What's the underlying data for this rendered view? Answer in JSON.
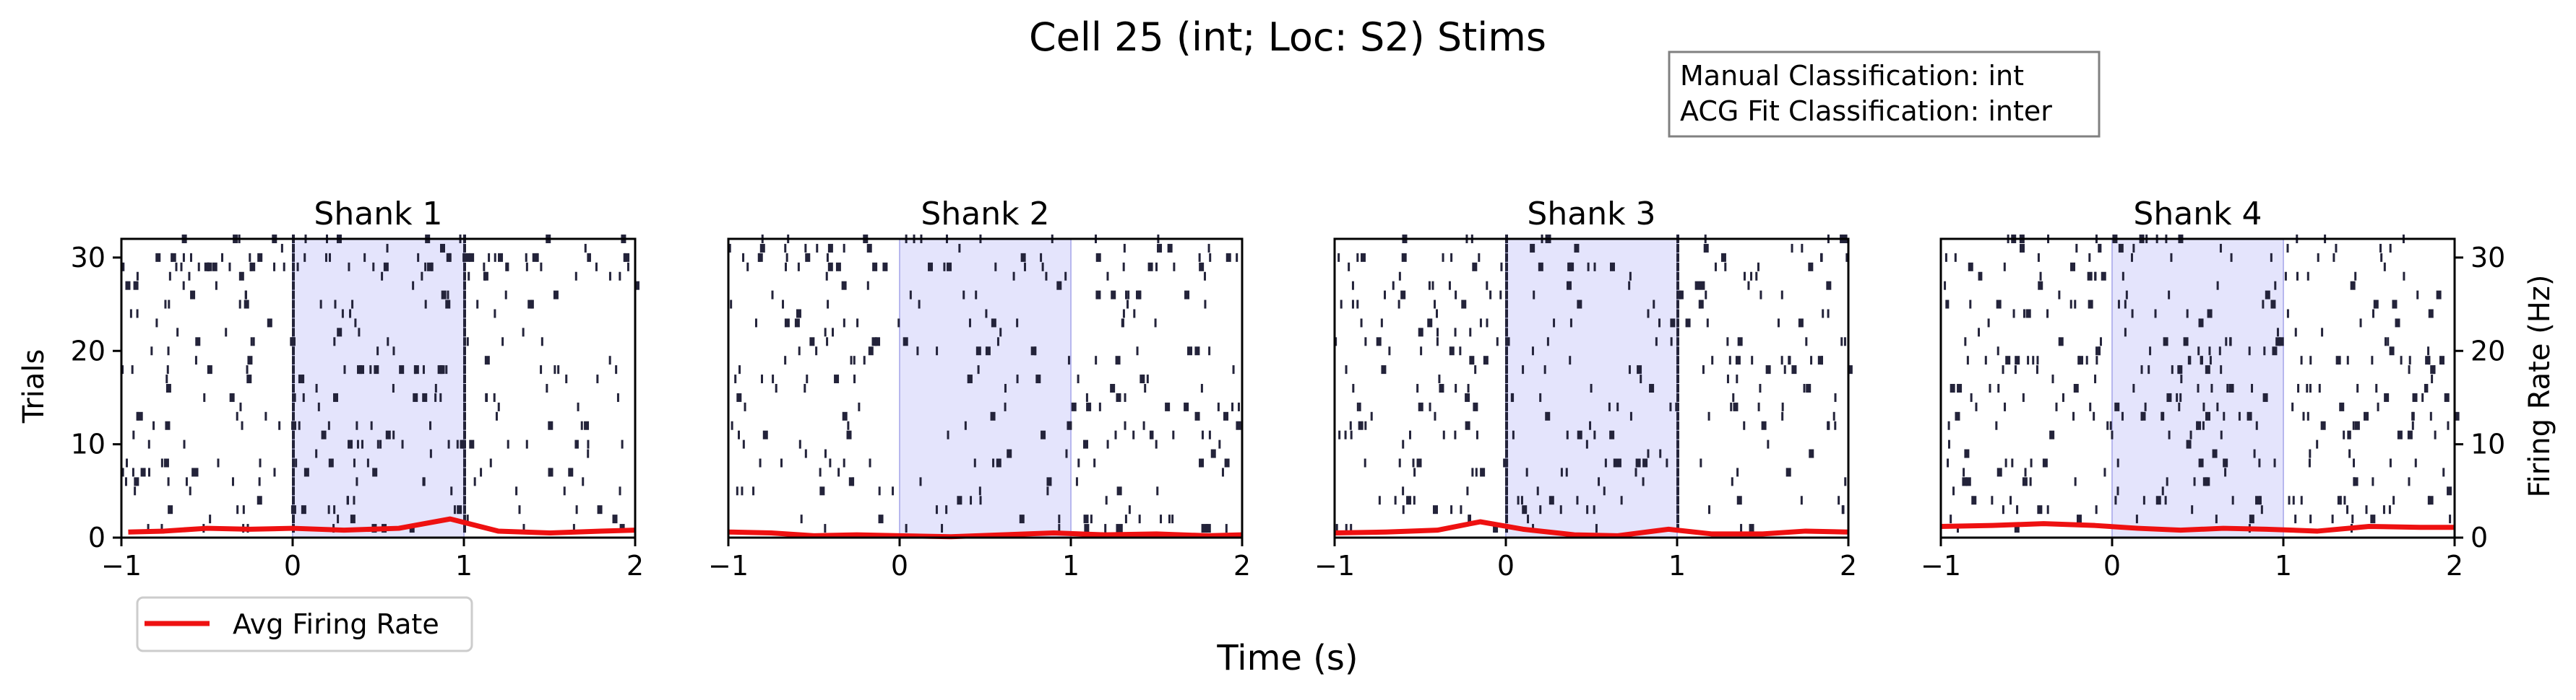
{
  "figure": {
    "title": "Cell 25 (int; Loc: S2) Stims",
    "info_box": [
      "Manual Classification: int",
      "ACG Fit Classification: inter"
    ],
    "xlabel": "Time (s)",
    "ylabel_left": "Trials",
    "ylabel_right": "Firing Rate (Hz)",
    "legend": "Avg Firing Rate",
    "colors": {
      "spike": "#23233a",
      "rate": "#ee1111",
      "stim": "#e4e4fc",
      "stim_edge": "#b7b7ee"
    }
  },
  "chart_data": [
    {
      "type": "line",
      "title": "Shank 1",
      "xlim": [
        -1,
        2
      ],
      "ylim": [
        0,
        32
      ],
      "xticks": [
        "−1",
        "0",
        "1",
        "2"
      ],
      "yticks": [
        "0",
        "10",
        "20",
        "30"
      ],
      "stim_window": [
        0,
        1
      ],
      "series": [
        {
          "name": "Avg Firing Rate",
          "x": [
            -0.96,
            -0.75,
            -0.5,
            -0.25,
            0,
            0.3,
            0.62,
            0.92,
            1.2,
            1.5,
            1.8,
            2.0
          ],
          "y": [
            0.6,
            0.7,
            1.0,
            0.9,
            1.0,
            0.8,
            1.0,
            2.0,
            0.7,
            0.5,
            0.7,
            0.8
          ]
        }
      ],
      "spike_density": [
        1,
        0,
        1,
        0,
        0,
        1,
        1,
        1,
        0,
        2,
        0,
        1,
        0,
        0,
        1,
        0,
        0,
        2,
        0,
        0,
        1,
        0,
        0,
        0,
        1,
        0,
        0,
        1,
        3,
        3,
        0,
        1
      ]
    },
    {
      "type": "line",
      "title": "Shank 2",
      "xlim": [
        -1,
        2
      ],
      "ylim": [
        0,
        32
      ],
      "xticks": [
        "−1",
        "0",
        "1",
        "2"
      ],
      "yticks": [],
      "stim_window": [
        0,
        1
      ],
      "series": [
        {
          "name": "Avg Firing Rate",
          "x": [
            -1,
            -0.75,
            -0.5,
            -0.25,
            0,
            0.3,
            0.6,
            0.9,
            1.2,
            1.5,
            1.8,
            2.0
          ],
          "y": [
            0.6,
            0.5,
            0.2,
            0.3,
            0.2,
            0.1,
            0.3,
            0.5,
            0.3,
            0.4,
            0.2,
            0.3
          ]
        }
      ],
      "spike_density": [
        1,
        1,
        0,
        0,
        1,
        0,
        0,
        1,
        0,
        0,
        1,
        0,
        0,
        1,
        0,
        0,
        1,
        0,
        0,
        1,
        0,
        0,
        1,
        0,
        0,
        1,
        0,
        0,
        2,
        1,
        1,
        1
      ]
    },
    {
      "type": "line",
      "title": "Shank 3",
      "xlim": [
        -1,
        2
      ],
      "ylim": [
        0,
        32
      ],
      "xticks": [
        "−1",
        "0",
        "1",
        "2"
      ],
      "yticks": [],
      "stim_window": [
        0,
        1
      ],
      "series": [
        {
          "name": "Avg Firing Rate",
          "x": [
            -1,
            -0.7,
            -0.4,
            -0.15,
            0.1,
            0.4,
            0.65,
            0.95,
            1.2,
            1.5,
            1.75,
            2.0
          ],
          "y": [
            0.5,
            0.6,
            0.8,
            1.7,
            0.9,
            0.3,
            0.2,
            0.9,
            0.4,
            0.4,
            0.7,
            0.6
          ]
        }
      ],
      "spike_density": [
        1,
        0,
        1,
        1,
        0,
        0,
        1,
        1,
        0,
        0,
        1,
        1,
        0,
        1,
        0,
        1,
        0,
        1,
        1,
        0,
        1,
        0,
        1,
        0,
        1,
        1,
        1,
        0,
        1,
        1,
        0,
        1
      ]
    },
    {
      "type": "line",
      "title": "Shank 4",
      "xlim": [
        -1,
        2
      ],
      "ylim": [
        0,
        32
      ],
      "xticks": [
        "−1",
        "0",
        "1",
        "2"
      ],
      "yticks": [
        "0",
        "10",
        "20",
        "30"
      ],
      "stim_window": [
        0,
        1
      ],
      "series": [
        {
          "name": "Avg Firing Rate",
          "x": [
            -1,
            -0.7,
            -0.4,
            -0.1,
            0.15,
            0.4,
            0.65,
            0.9,
            1.2,
            1.5,
            1.8,
            2.0
          ],
          "y": [
            1.2,
            1.3,
            1.5,
            1.3,
            1.0,
            0.8,
            1.0,
            0.9,
            0.7,
            1.2,
            1.1,
            1.1
          ]
        }
      ],
      "spike_density": [
        0,
        1,
        1,
        2,
        0,
        1,
        0,
        1,
        0,
        0,
        1,
        1,
        2,
        1,
        1,
        2,
        0,
        1,
        3,
        1,
        1,
        0,
        0,
        1,
        1,
        0,
        0,
        1,
        0,
        1,
        1,
        1
      ]
    }
  ]
}
